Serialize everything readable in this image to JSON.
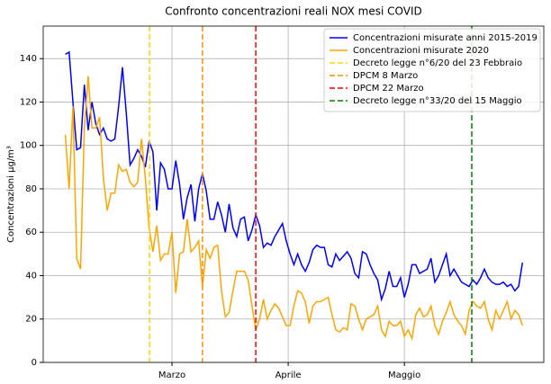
{
  "chart_data": {
    "type": "line",
    "title": "Confronto concentrazioni reali NOX mesi COVID",
    "ylabel": "Concentrazioni μg/m³",
    "x": [
      1,
      2,
      3,
      4,
      5,
      6,
      7,
      8,
      9,
      10,
      11,
      12,
      13,
      14,
      15,
      16,
      17,
      18,
      19,
      20,
      21,
      22,
      23,
      24,
      25,
      26,
      27,
      28,
      29,
      30,
      31,
      32,
      33,
      34,
      35,
      36,
      37,
      38,
      39,
      40,
      41,
      42,
      43,
      44,
      45,
      46,
      47,
      48,
      49,
      50,
      51,
      52,
      53,
      54,
      55,
      56,
      57,
      58,
      59,
      60,
      61,
      62,
      63,
      64,
      65,
      66,
      67,
      68,
      69,
      70,
      71,
      72,
      73,
      74,
      75,
      76,
      77,
      78,
      79,
      80,
      81,
      82,
      83,
      84,
      85,
      86,
      87,
      88,
      89,
      90,
      91,
      92,
      93,
      94,
      95,
      96,
      97,
      98,
      99,
      100,
      101,
      102,
      103,
      104,
      105,
      106,
      107,
      108,
      109,
      110,
      111,
      112,
      113,
      114,
      115,
      116,
      117,
      118,
      119,
      120,
      121
    ],
    "series": [
      {
        "name": "Concentrazioni misurate anni 2015-2019",
        "color": "#0000ff",
        "values": [
          142,
          143,
          120,
          98,
          99,
          128,
          107,
          120,
          110,
          105,
          108,
          103,
          102,
          103,
          118,
          136,
          115,
          91,
          94,
          98,
          95,
          90,
          102,
          97,
          70,
          92,
          89,
          80,
          80,
          93,
          82,
          66,
          76,
          82,
          65,
          80,
          87,
          79,
          66,
          66,
          74,
          68,
          60,
          73,
          62,
          58,
          66,
          67,
          56,
          61,
          68,
          63,
          53,
          55,
          54,
          58,
          61,
          64,
          56,
          50,
          45,
          50,
          45,
          42,
          46,
          52,
          54,
          53,
          53,
          45,
          44,
          50,
          47,
          49,
          51,
          48,
          41,
          39,
          51,
          50,
          45,
          41,
          38,
          29,
          34,
          42,
          35,
          35,
          39,
          30,
          36,
          45,
          45,
          41,
          42,
          43,
          48,
          37,
          40,
          45,
          50,
          40,
          43,
          40,
          37,
          36,
          35,
          38,
          36,
          39,
          43,
          39,
          37,
          36,
          36,
          37,
          35,
          36,
          33,
          35,
          46
        ]
      },
      {
        "name": "Concentrazioni misurate 2020",
        "color": "#ffa500",
        "values": [
          105,
          80,
          118,
          48,
          43,
          108,
          132,
          108,
          108,
          113,
          85,
          70,
          78,
          78,
          91,
          88,
          89,
          83,
          81,
          83,
          103,
          85,
          62,
          51,
          63,
          47,
          50,
          50,
          60,
          32,
          50,
          51,
          66,
          51,
          53,
          56,
          35,
          52,
          48,
          53,
          54,
          33,
          21,
          23,
          33,
          42,
          42,
          42,
          38,
          26,
          15,
          20,
          29,
          20,
          24,
          27,
          25,
          21,
          17,
          17,
          26,
          33,
          32,
          28,
          18,
          26,
          28,
          28,
          29,
          30,
          22,
          15,
          14,
          16,
          15,
          27,
          26,
          20,
          15,
          20,
          21,
          22,
          26,
          15,
          12,
          19,
          17,
          17,
          19,
          12,
          15,
          11,
          22,
          25,
          21,
          22,
          26,
          17,
          13,
          19,
          23,
          28,
          22,
          19,
          17,
          13,
          24,
          28,
          26,
          25,
          28,
          20,
          15,
          24,
          20,
          24,
          28,
          20,
          24,
          22,
          17
        ]
      }
    ],
    "vlines": [
      {
        "name": "Decreto legge n°6/20 del 23 Febbraio",
        "color": "#ffd700",
        "x": 23.1
      },
      {
        "name": "DPCM 8 Marzo",
        "color": "#ff8c00",
        "x": 37
      },
      {
        "name": "DPCM 22 Marzo",
        "color": "#ff0000",
        "x": 51
      },
      {
        "name": "Decreto legge n°33/20 del 15 Maggio",
        "color": "#008000",
        "x": 107.7
      }
    ],
    "xlim": [
      -4.8,
      126.6
    ],
    "xticks": [
      {
        "value": 29,
        "label": "Marzo"
      },
      {
        "value": 59.5,
        "label": "Aprile"
      },
      {
        "value": 90,
        "label": "Maggio"
      }
    ],
    "ylim": [
      0,
      155
    ],
    "yticks": [
      0,
      20,
      40,
      60,
      80,
      100,
      120,
      140
    ],
    "grid": true,
    "legend": "upper right"
  }
}
